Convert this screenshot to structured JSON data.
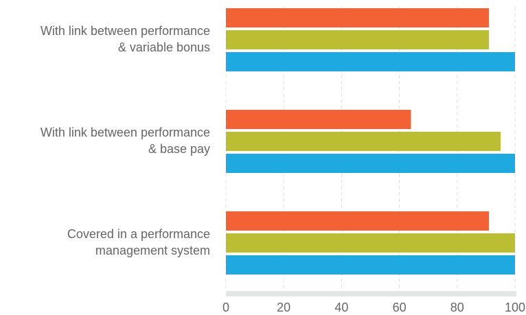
{
  "chart_data": {
    "type": "bar",
    "orientation": "horizontal",
    "categories": [
      "With link between performance\n& variable bonus",
      "With link between performance\n& base pay",
      "Covered in a performance\nmanagement system"
    ],
    "series": [
      {
        "color": "#f26234",
        "values": [
          91,
          64,
          91
        ]
      },
      {
        "color": "#bbbd33",
        "values": [
          91,
          95,
          100
        ]
      },
      {
        "color": "#1eaae1",
        "values": [
          100,
          100,
          100
        ]
      }
    ],
    "xlim": [
      0,
      100
    ],
    "xticks": [
      0,
      20,
      40,
      60,
      80,
      100
    ],
    "grid": true
  }
}
